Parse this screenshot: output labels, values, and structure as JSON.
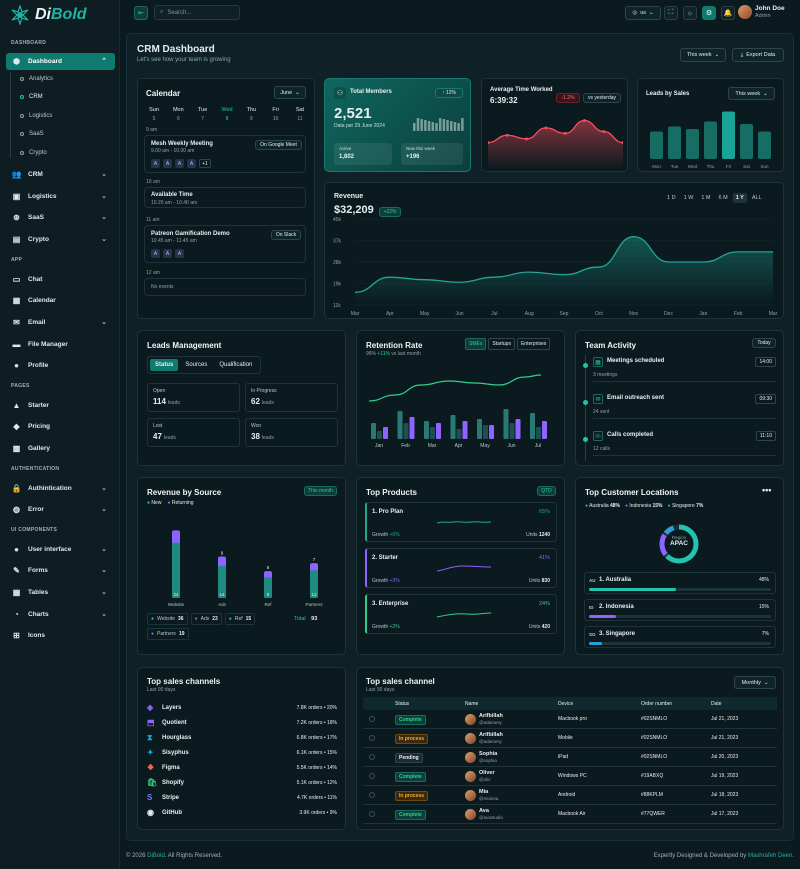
{
  "brand": {
    "name_a": "Di",
    "name_b": "Bold"
  },
  "topbar": {
    "search_placeholder": "Search...",
    "lang": "us",
    "user_name": "John Doe",
    "user_role": "Admin"
  },
  "sidebar": {
    "sections": [
      "DASHBOARD",
      "APP",
      "PAGES",
      "AUTHENTICATION",
      "UI COMPONENTS"
    ],
    "dashboard": "Dashboard",
    "sub": [
      "Analytics",
      "CRM",
      "Logistics",
      "SaaS",
      "Crypto"
    ],
    "items": [
      "CRM",
      "Logistics",
      "SaaS",
      "Crypto",
      "Chat",
      "Calendar",
      "Email",
      "File Manager",
      "Profile",
      "Starter",
      "Pricing",
      "Gallery",
      "Authintication",
      "Error",
      "User interface",
      "Forms",
      "Tables",
      "Charts",
      "Icons"
    ]
  },
  "page": {
    "title": "CRM Dashboard",
    "subtitle": "Let's see how your team is growing",
    "period": "This week",
    "export": "Export Data"
  },
  "calendar": {
    "title": "Calendar",
    "month": "June",
    "days": [
      {
        "d": "Sun",
        "n": "5"
      },
      {
        "d": "Mon",
        "n": "6"
      },
      {
        "d": "Tue",
        "n": "7"
      },
      {
        "d": "Wed",
        "n": "8"
      },
      {
        "d": "Thu",
        "n": "9"
      },
      {
        "d": "Fri",
        "n": "10"
      },
      {
        "d": "Sat",
        "n": "11"
      }
    ],
    "slots": [
      "9 am",
      "10 am",
      "11 am",
      "12 am"
    ],
    "events": [
      {
        "title": "Mesh Weekly Meeting",
        "time": "9.00 am - 10.00 am",
        "tag": "On Google Meet",
        "avatars": [
          "A",
          "A",
          "A",
          "A"
        ],
        "more": "+1"
      },
      {
        "title": "Available Time",
        "time": "10.20 am - 10.40 am"
      },
      {
        "title": "Patreon Gamification Demo",
        "time": "10.45 am - 11.45 am",
        "tag": "On Slack",
        "avatars": [
          "A",
          "A",
          "A"
        ]
      }
    ],
    "no_events": "No events"
  },
  "members": {
    "title": "Total Members",
    "badge": "↑ 12%",
    "value": "2,521",
    "date": "Data per 29 June 2024",
    "active_label": "Active",
    "active": "1,802",
    "new_label": "New this week",
    "new": "+196"
  },
  "avg_time": {
    "title": "Average Time Worked",
    "value": "6:39:32",
    "change": "-1.2%",
    "cmp": "vs yesterday"
  },
  "leads_sales": {
    "title": "Leads by Sales",
    "period": "This week",
    "days": [
      "Mon",
      "Tue",
      "Wed",
      "Thu",
      "Fri",
      "Sat",
      "Sun"
    ]
  },
  "revenue": {
    "title": "Revenue",
    "value": "$32,209",
    "change": "+22%",
    "ranges": [
      "1 D",
      "1 W",
      "1 M",
      "6 M",
      "1 Y",
      "ALL"
    ],
    "yticks": [
      "45k",
      "37k",
      "28k",
      "19k",
      "11k"
    ],
    "months": [
      "Mar",
      "Apr",
      "May",
      "Jun",
      "Jul",
      "Aug",
      "Sep",
      "Oct",
      "Nov",
      "Dec",
      "Jan",
      "Feb",
      "Mar"
    ]
  },
  "leads_mgmt": {
    "title": "Leads Management",
    "tabs": [
      "Status",
      "Sources",
      "Qualification"
    ],
    "stats": [
      {
        "label": "Open",
        "value": "114",
        "unit": "leads"
      },
      {
        "label": "In Progress",
        "value": "62",
        "unit": "leads"
      },
      {
        "label": "Lost",
        "value": "47",
        "unit": "leads"
      },
      {
        "label": "Won",
        "value": "38",
        "unit": "leads"
      }
    ]
  },
  "retention": {
    "title": "Retention Rate",
    "tabs": [
      "SMEs",
      "Startups",
      "Enterprises"
    ],
    "rate": "96%",
    "change": "+11%",
    "cmp": "vs last month",
    "months": [
      "Jan",
      "Feb",
      "Mar",
      "Apr",
      "May",
      "Jun",
      "Jul"
    ]
  },
  "activity": {
    "title": "Team Activity",
    "period": "Today",
    "items": [
      {
        "title": "Meetings scheduled",
        "time": "14:00",
        "sub": "3 meetings"
      },
      {
        "title": "Email outreach sent",
        "time": "09:30",
        "sub": "24 sent"
      },
      {
        "title": "Calls completed",
        "time": "11:10",
        "sub": "12 calls"
      }
    ]
  },
  "revenue_source": {
    "title": "Revenue by Source",
    "period": "This month",
    "legend": [
      "New",
      "Returning"
    ],
    "bars": [
      {
        "label": "Website",
        "top": "",
        "value": "24"
      },
      {
        "label": "Ads",
        "top": "9",
        "value": "14"
      },
      {
        "label": "Ref",
        "top": "6",
        "value": "9"
      },
      {
        "label": "Partners",
        "top": "7",
        "value": "12"
      }
    ],
    "chips": [
      {
        "name": "Website",
        "v": "36"
      },
      {
        "name": "Ads",
        "v": "23"
      },
      {
        "name": "Ref",
        "v": "15"
      },
      {
        "name": "Partners",
        "v": "19"
      }
    ],
    "total_label": "Total",
    "total": "93"
  },
  "top_products": {
    "title": "Top Products",
    "period": "QTD",
    "items": [
      {
        "name": "1. Pro Plan",
        "pct": "65%",
        "growth_label": "Growth",
        "growth": "+6%",
        "units_label": "Units",
        "units": "1240"
      },
      {
        "name": "2. Starter",
        "pct": "41%",
        "growth_label": "Growth",
        "growth": "+3%",
        "units_label": "Units",
        "units": "830"
      },
      {
        "name": "3. Enterprise",
        "pct": "24%",
        "growth_label": "Growth",
        "growth": "+2%",
        "units_label": "Units",
        "units": "420"
      }
    ]
  },
  "locations": {
    "title": "Top Customer Locations",
    "legend": [
      {
        "n": "Australia",
        "v": "48%"
      },
      {
        "n": "Indonesia",
        "v": "15%"
      },
      {
        "n": "Singapore",
        "v": "7%"
      }
    ],
    "region_label": "Region",
    "region": "APAC",
    "rows": [
      {
        "code": "AU",
        "name": "1. Australia",
        "v": "48%",
        "fill": 0.48
      },
      {
        "code": "ID",
        "name": "2. Indonesia",
        "v": "15%",
        "fill": 0.15
      },
      {
        "code": "SG",
        "name": "3. Singapore",
        "v": "7%",
        "fill": 0.07
      }
    ]
  },
  "channels": {
    "title": "Top sales channels",
    "sub": "Last 90 days",
    "items": [
      {
        "name": "Layers",
        "v": "7.8K orders • 20%"
      },
      {
        "name": "Quotient",
        "v": "7.2K orders • 18%"
      },
      {
        "name": "Hourglass",
        "v": "6.8K orders • 17%"
      },
      {
        "name": "Sisyphus",
        "v": "6.1K orders • 15%"
      },
      {
        "name": "Figma",
        "v": "5.5K orders • 14%"
      },
      {
        "name": "Shopify",
        "v": "5.1K orders • 12%"
      },
      {
        "name": "Stripe",
        "v": "4.7K orders • 11%"
      },
      {
        "name": "GitHub",
        "v": "3.9K orders • 9%"
      }
    ]
  },
  "sales_table": {
    "title": "Top sales channel",
    "sub": "Last 90 days",
    "period": "Monthly",
    "cols": [
      "Status",
      "Name",
      "Device",
      "Order number",
      "Date"
    ],
    "rows": [
      {
        "status": "Complete",
        "name": "Arifbillah",
        "handle": "@adamesy",
        "device": "Macbook pro",
        "order": "#02SNMLO",
        "date": "Jul 21, 2023"
      },
      {
        "status": "In process",
        "name": "Arifbillah",
        "handle": "@adamesy",
        "device": "Mobile",
        "order": "#02SNMLO",
        "date": "Jul 21, 2023"
      },
      {
        "status": "Pending",
        "name": "Sophia",
        "handle": "@sophia",
        "device": "iPad",
        "order": "#02SNMLO",
        "date": "Jul 20, 2023"
      },
      {
        "status": "Complete",
        "name": "Oliver",
        "handle": "@oliv",
        "device": "Windows PC",
        "order": "#19ABXQ",
        "date": "Jul 19, 2023"
      },
      {
        "status": "In process",
        "name": "Mia",
        "handle": "@mianna",
        "device": "Android",
        "order": "#88KPLM",
        "date": "Jul 18, 2023"
      },
      {
        "status": "Complete",
        "name": "Ava",
        "handle": "@avastudio",
        "device": "Macbook Air",
        "order": "#77QWER",
        "date": "Jul 17, 2023"
      }
    ]
  },
  "footer": {
    "left_a": "© 2026 ",
    "left_b": "DiBold",
    "left_c": ". All Rights Reserved.",
    "right_a": "Expertly Designed & Developed by ",
    "right_b": "Mashrafeh Deen",
    "right_c": "."
  },
  "colors": {
    "accent": "#0f7a70",
    "teal": "#23c4ae",
    "red": "#ff4d5e",
    "purple": "#8f63ff",
    "green": "#30d08a"
  },
  "chart_data": [
    {
      "type": "line",
      "title": "Revenue",
      "x": [
        "Mar",
        "Apr",
        "May",
        "Jun",
        "Jul",
        "Aug",
        "Sep",
        "Oct",
        "Nov",
        "Dec",
        "Jan",
        "Feb",
        "Mar"
      ],
      "values": [
        16,
        22,
        21,
        20,
        22,
        24,
        23,
        26,
        38,
        28,
        28,
        32,
        32
      ],
      "ylim": [
        11,
        45
      ]
    },
    {
      "type": "bar",
      "title": "Leads by Sales",
      "categories": [
        "Mon",
        "Tue",
        "Wed",
        "Thu",
        "Fri",
        "Sat",
        "Sun"
      ],
      "values": [
        55,
        65,
        60,
        75,
        95,
        70,
        55
      ]
    },
    {
      "type": "area",
      "title": "Average Time Worked",
      "values": [
        40,
        48,
        44,
        56,
        50,
        64,
        52,
        40
      ]
    },
    {
      "type": "bar",
      "title": "Retention Rate",
      "categories": [
        "Jan",
        "Feb",
        "Mar",
        "Apr",
        "May",
        "Jun",
        "Jul"
      ],
      "series": [
        {
          "name": "SMEs",
          "values": [
            40,
            70,
            45,
            60,
            50,
            75,
            65
          ]
        },
        {
          "name": "Startups",
          "values": [
            20,
            40,
            30,
            25,
            35,
            40,
            30
          ]
        },
        {
          "name": "Enterprises",
          "values": [
            30,
            55,
            40,
            45,
            35,
            50,
            45
          ]
        }
      ]
    },
    {
      "type": "bar",
      "title": "Revenue by Source",
      "categories": [
        "Website",
        "Ads",
        "Ref",
        "Partners"
      ],
      "series": [
        {
          "name": "New",
          "values": [
            24,
            14,
            9,
            12
          ]
        },
        {
          "name": "Returning",
          "values": [
            12,
            9,
            6,
            7
          ]
        }
      ]
    }
  ]
}
